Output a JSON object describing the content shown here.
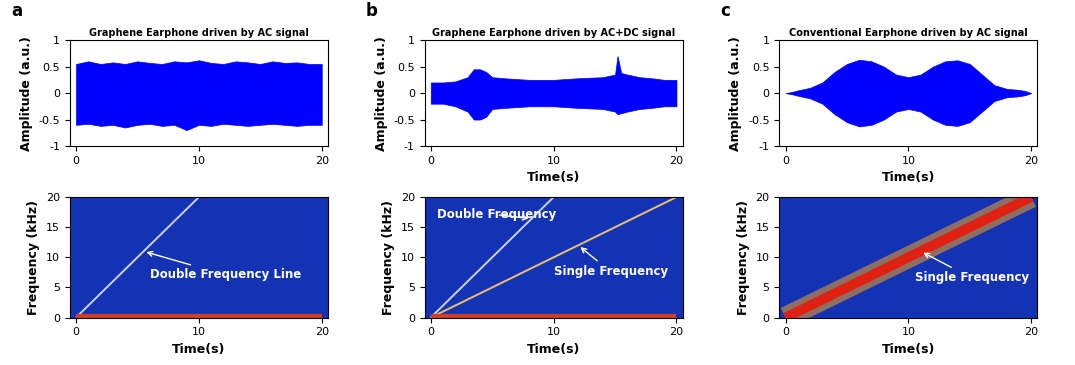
{
  "chart_data": [
    {
      "type": "area",
      "panel_label": "a",
      "title": "Graphene Earphone driven by AC signal",
      "y_label": "Amplitude (a.u.)",
      "color": "#0000ff",
      "x": [
        0,
        1,
        2,
        3,
        4,
        5,
        6,
        7,
        8,
        9,
        10,
        11,
        12,
        13,
        14,
        15,
        16,
        17,
        18,
        19,
        20
      ],
      "upper": [
        0.55,
        0.6,
        0.55,
        0.58,
        0.55,
        0.6,
        0.57,
        0.55,
        0.6,
        0.58,
        0.62,
        0.57,
        0.55,
        0.6,
        0.58,
        0.55,
        0.6,
        0.57,
        0.58,
        0.55,
        0.55
      ],
      "lower": [
        -0.6,
        -0.58,
        -0.62,
        -0.6,
        -0.65,
        -0.6,
        -0.58,
        -0.62,
        -0.6,
        -0.7,
        -0.6,
        -0.62,
        -0.58,
        -0.6,
        -0.62,
        -0.6,
        -0.58,
        -0.6,
        -0.62,
        -0.6,
        -0.6
      ],
      "xlim": [
        -0.5,
        20.5
      ],
      "xticks": [
        0,
        10,
        20
      ],
      "ylim": [
        -1,
        1
      ],
      "yticks": [
        -1,
        -0.5,
        0,
        0.5,
        1
      ]
    },
    {
      "type": "area",
      "panel_label": "b",
      "title": "Graphene Earphone driven by AC+DC signal",
      "x_label": "Time(s)",
      "y_label": "Amplitude (a.u.)",
      "color": "#0000ff",
      "x": [
        0,
        1,
        2,
        3,
        3.5,
        4,
        4.5,
        5,
        6,
        8,
        10,
        12,
        14,
        15,
        15.2,
        15.5,
        16,
        17,
        18,
        19,
        20
      ],
      "upper": [
        0.2,
        0.2,
        0.22,
        0.3,
        0.45,
        0.45,
        0.4,
        0.3,
        0.28,
        0.25,
        0.25,
        0.28,
        0.3,
        0.35,
        0.7,
        0.38,
        0.35,
        0.3,
        0.28,
        0.25,
        0.25
      ],
      "lower": [
        -0.2,
        -0.2,
        -0.25,
        -0.35,
        -0.5,
        -0.5,
        -0.45,
        -0.3,
        -0.28,
        -0.25,
        -0.25,
        -0.28,
        -0.3,
        -0.35,
        -0.4,
        -0.38,
        -0.35,
        -0.3,
        -0.28,
        -0.25,
        -0.25
      ],
      "xlim": [
        -0.5,
        20.5
      ],
      "xticks": [
        0,
        10,
        20
      ],
      "ylim": [
        -1,
        1
      ],
      "yticks": [
        -1,
        -0.5,
        0,
        0.5,
        1
      ]
    },
    {
      "type": "area",
      "panel_label": "c",
      "title": "Conventional Earphone driven by AC signal",
      "x_label": "Time(s)",
      "y_label": "Amplitude (a.u.)",
      "color": "#0000ff",
      "x": [
        0,
        0.5,
        1,
        2,
        3,
        4,
        5,
        6,
        7,
        8,
        9,
        10,
        11,
        12,
        13,
        14,
        15,
        16,
        17,
        18,
        19,
        19.5,
        20
      ],
      "upper": [
        0,
        0.02,
        0.05,
        0.1,
        0.2,
        0.4,
        0.55,
        0.63,
        0.6,
        0.5,
        0.35,
        0.3,
        0.35,
        0.5,
        0.6,
        0.62,
        0.55,
        0.35,
        0.15,
        0.08,
        0.06,
        0.04,
        0
      ],
      "lower": [
        0,
        -0.02,
        -0.05,
        -0.1,
        -0.2,
        -0.4,
        -0.55,
        -0.63,
        -0.6,
        -0.5,
        -0.35,
        -0.3,
        -0.35,
        -0.5,
        -0.6,
        -0.62,
        -0.55,
        -0.35,
        -0.15,
        -0.08,
        -0.06,
        -0.04,
        0
      ],
      "xlim": [
        -0.5,
        20.5
      ],
      "xticks": [
        0,
        10,
        20
      ],
      "ylim": [
        -1,
        1
      ],
      "yticks": [
        -1,
        -0.5,
        0,
        0.5,
        1
      ]
    },
    {
      "type": "line",
      "x_label": "Time(s)",
      "y_label": "Frequency (kHz)",
      "series": [
        {
          "x": [
            0,
            10
          ],
          "values": [
            0,
            20
          ],
          "color": "#c8d4ff"
        },
        {
          "x": [
            0,
            20
          ],
          "values": [
            0.3,
            0.3
          ],
          "color": "#d04020"
        }
      ],
      "annotations": [
        {
          "text": "Double Frequency Line",
          "x": 5.5,
          "y": 11,
          "text_x": 6,
          "text_y": 6.5
        }
      ],
      "xlim": [
        -0.5,
        20.5
      ],
      "xticks": [
        0,
        10,
        20
      ],
      "ylim": [
        0,
        20
      ],
      "yticks": [
        0,
        5,
        10,
        15,
        20
      ]
    },
    {
      "type": "line",
      "x_label": "Time(s)",
      "y_label": "Frequency (kHz)",
      "series": [
        {
          "x": [
            0,
            10
          ],
          "values": [
            0,
            20
          ],
          "color": "#c8d4ff"
        },
        {
          "x": [
            0,
            20
          ],
          "values": [
            0,
            20
          ],
          "color": "#e8c070"
        },
        {
          "x": [
            0,
            20
          ],
          "values": [
            0.3,
            0.3
          ],
          "color": "#d04020"
        }
      ],
      "annotations": [
        {
          "text": "Double Frequency",
          "x": 8.2,
          "y": 16.4,
          "text_x": 0.5,
          "text_y": 16.5
        },
        {
          "text": "Single Frequency",
          "x": 12,
          "y": 12,
          "text_x": 10,
          "text_y": 7
        }
      ],
      "xlim": [
        -0.5,
        20.5
      ],
      "xticks": [
        0,
        10,
        20
      ],
      "ylim": [
        0,
        20
      ],
      "yticks": [
        0,
        5,
        10,
        15,
        20
      ]
    },
    {
      "type": "line",
      "x_label": "Time(s)",
      "y_label": "Frequency (kHz)",
      "series": [
        {
          "x": [
            0,
            20
          ],
          "values": [
            0,
            20
          ],
          "color": "#e02010"
        }
      ],
      "annotations": [
        {
          "text": "Single Frequency",
          "x": 11,
          "y": 11,
          "text_x": 10.5,
          "text_y": 6
        }
      ],
      "xlim": [
        -0.5,
        20.5
      ],
      "xticks": [
        0,
        10,
        20
      ],
      "ylim": [
        0,
        20
      ],
      "yticks": [
        0,
        5,
        10,
        15,
        20
      ]
    }
  ]
}
